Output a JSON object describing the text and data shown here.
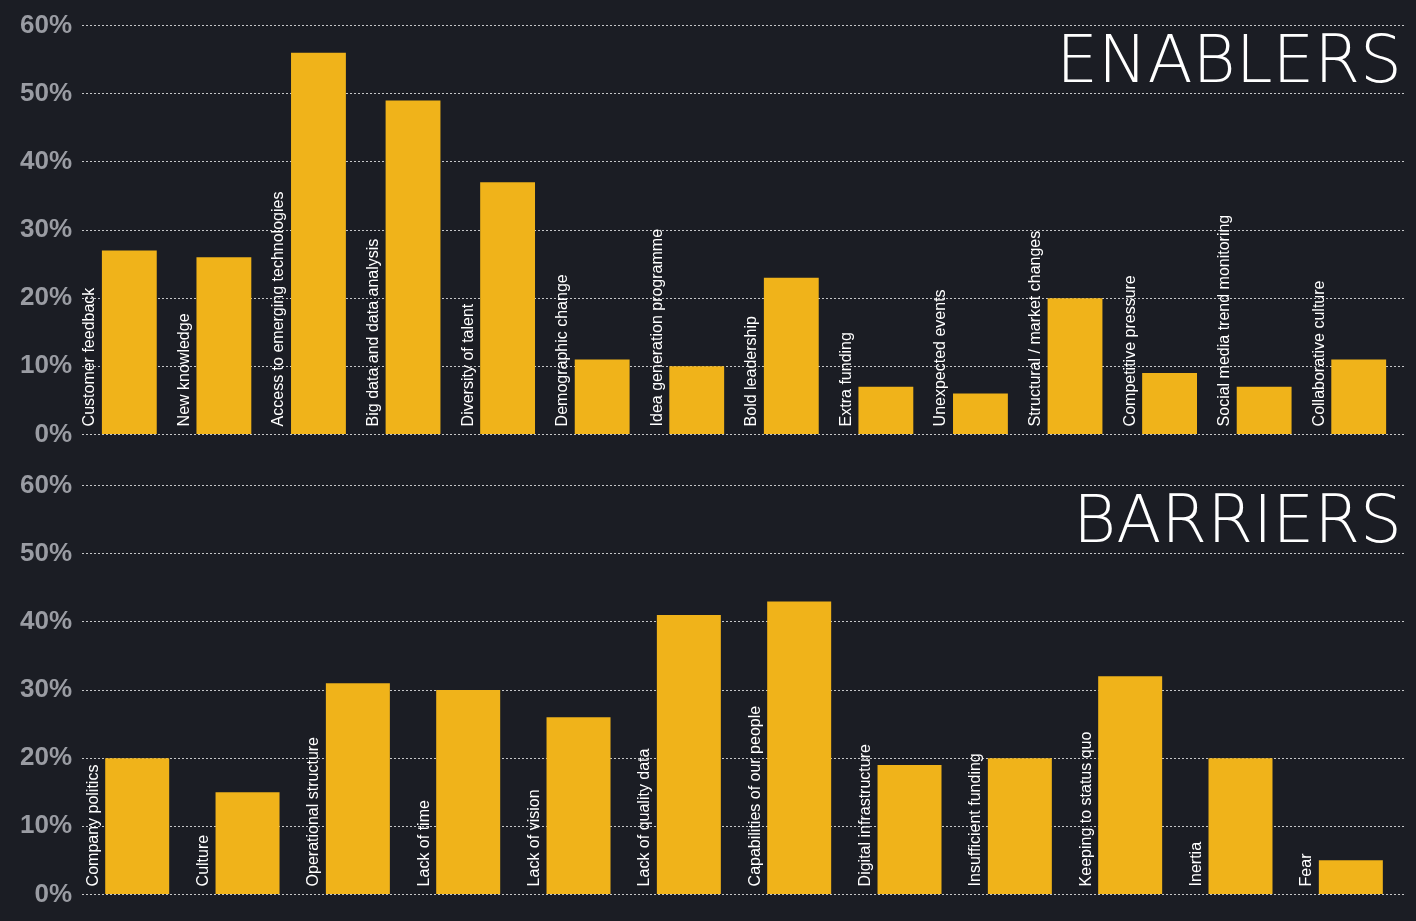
{
  "chart_data": [
    {
      "type": "bar",
      "title": "ENABLERS",
      "categories": [
        "Customer feedback",
        "New knowledge",
        "Access to emerging technologies",
        "Big data and data analysis",
        "Diversity of talent",
        "Demographic change",
        "Idea generation programme",
        "Bold leadership",
        "Extra funding",
        "Unexpected events",
        "Structural / market changes",
        "Competitive pressure",
        "Social media trend monitoring",
        "Collaborative culture"
      ],
      "values": [
        27,
        26,
        56,
        49,
        37,
        11,
        10,
        23,
        7,
        6,
        20,
        9,
        7,
        11
      ],
      "color": "#f0b31a",
      "ylim": [
        0,
        60
      ],
      "yticks": [
        {
          "value": 0,
          "label": "0%"
        },
        {
          "value": 10,
          "label": "10%"
        },
        {
          "value": 20,
          "label": "20%"
        },
        {
          "value": 30,
          "label": "30%"
        },
        {
          "value": 40,
          "label": "40%"
        },
        {
          "value": 50,
          "label": "50%"
        },
        {
          "value": 60,
          "label": "60%"
        }
      ],
      "grid": "y",
      "legend": false
    },
    {
      "type": "bar",
      "title": "BARRIERS",
      "categories": [
        "Company politics",
        "Culture",
        "Operational structure",
        "Lack of time",
        "Lack of vision",
        "Lack of quality data",
        "Capabilities of our people",
        "Digital infrastructure",
        "Insufficient funding",
        "Keeping to status quo",
        "Inertia",
        "Fear"
      ],
      "values": [
        20,
        15,
        31,
        30,
        26,
        41,
        43,
        19,
        20,
        32,
        20,
        5
      ],
      "color": "#f0b31a",
      "ylim": [
        0,
        60
      ],
      "yticks": [
        {
          "value": 0,
          "label": "0%"
        },
        {
          "value": 10,
          "label": "10%"
        },
        {
          "value": 20,
          "label": "20%"
        },
        {
          "value": 30,
          "label": "30%"
        },
        {
          "value": 40,
          "label": "40%"
        },
        {
          "value": 50,
          "label": "50%"
        },
        {
          "value": 60,
          "label": "60%"
        }
      ],
      "grid": "y",
      "legend": false
    }
  ]
}
